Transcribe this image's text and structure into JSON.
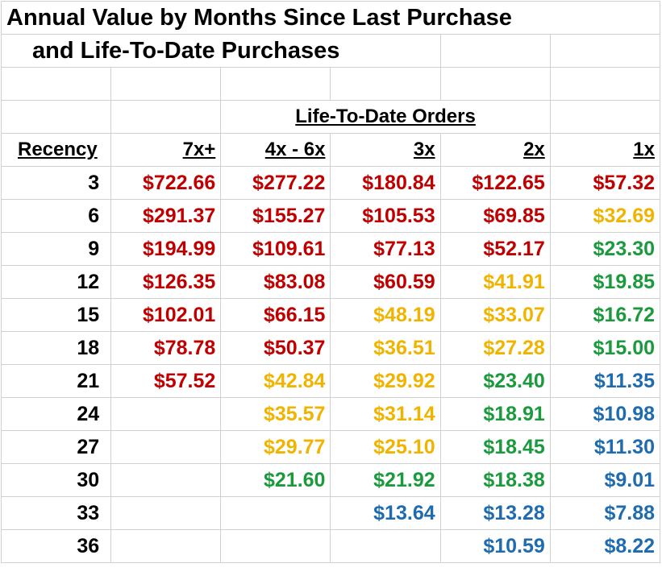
{
  "title_line1": "Annual Value by Months Since Last Purchase",
  "title_line2": "and Life-To-Date Purchases",
  "group_header": "Life-To-Date Orders",
  "column_headers": [
    "Recency",
    "7x+",
    "4x - 6x",
    "3x",
    "2x",
    "1x"
  ],
  "colors": {
    "red": "#c00000",
    "orange": "#f0b400",
    "green": "#1a9a3c",
    "blue": "#1e6bb0"
  },
  "rows": [
    {
      "recency": "3",
      "cells": [
        {
          "v": "$722.66",
          "c": "red"
        },
        {
          "v": "$277.22",
          "c": "red"
        },
        {
          "v": "$180.84",
          "c": "red"
        },
        {
          "v": "$122.65",
          "c": "red"
        },
        {
          "v": "$57.32",
          "c": "red"
        }
      ]
    },
    {
      "recency": "6",
      "cells": [
        {
          "v": "$291.37",
          "c": "red"
        },
        {
          "v": "$155.27",
          "c": "red"
        },
        {
          "v": "$105.53",
          "c": "red"
        },
        {
          "v": "$69.85",
          "c": "red"
        },
        {
          "v": "$32.69",
          "c": "orange"
        }
      ]
    },
    {
      "recency": "9",
      "cells": [
        {
          "v": "$194.99",
          "c": "red"
        },
        {
          "v": "$109.61",
          "c": "red"
        },
        {
          "v": "$77.13",
          "c": "red"
        },
        {
          "v": "$52.17",
          "c": "red"
        },
        {
          "v": "$23.30",
          "c": "green"
        }
      ]
    },
    {
      "recency": "12",
      "cells": [
        {
          "v": "$126.35",
          "c": "red"
        },
        {
          "v": "$83.08",
          "c": "red"
        },
        {
          "v": "$60.59",
          "c": "red"
        },
        {
          "v": "$41.91",
          "c": "orange"
        },
        {
          "v": "$19.85",
          "c": "green"
        }
      ]
    },
    {
      "recency": "15",
      "cells": [
        {
          "v": "$102.01",
          "c": "red"
        },
        {
          "v": "$66.15",
          "c": "red"
        },
        {
          "v": "$48.19",
          "c": "orange"
        },
        {
          "v": "$33.07",
          "c": "orange"
        },
        {
          "v": "$16.72",
          "c": "green"
        }
      ]
    },
    {
      "recency": "18",
      "cells": [
        {
          "v": "$78.78",
          "c": "red"
        },
        {
          "v": "$50.37",
          "c": "red"
        },
        {
          "v": "$36.51",
          "c": "orange"
        },
        {
          "v": "$27.28",
          "c": "orange"
        },
        {
          "v": "$15.00",
          "c": "green"
        }
      ]
    },
    {
      "recency": "21",
      "cells": [
        {
          "v": "$57.52",
          "c": "red"
        },
        {
          "v": "$42.84",
          "c": "orange"
        },
        {
          "v": "$29.92",
          "c": "orange"
        },
        {
          "v": "$23.40",
          "c": "green"
        },
        {
          "v": "$11.35",
          "c": "blue"
        }
      ]
    },
    {
      "recency": "24",
      "cells": [
        {
          "v": "",
          "c": ""
        },
        {
          "v": "$35.57",
          "c": "orange"
        },
        {
          "v": "$31.14",
          "c": "orange"
        },
        {
          "v": "$18.91",
          "c": "green"
        },
        {
          "v": "$10.98",
          "c": "blue"
        }
      ]
    },
    {
      "recency": "27",
      "cells": [
        {
          "v": "",
          "c": ""
        },
        {
          "v": "$29.77",
          "c": "orange"
        },
        {
          "v": "$25.10",
          "c": "orange"
        },
        {
          "v": "$18.45",
          "c": "green"
        },
        {
          "v": "$11.30",
          "c": "blue"
        }
      ]
    },
    {
      "recency": "30",
      "cells": [
        {
          "v": "",
          "c": ""
        },
        {
          "v": "$21.60",
          "c": "green"
        },
        {
          "v": "$21.92",
          "c": "green"
        },
        {
          "v": "$18.38",
          "c": "green"
        },
        {
          "v": "$9.01",
          "c": "blue"
        }
      ]
    },
    {
      "recency": "33",
      "cells": [
        {
          "v": "",
          "c": ""
        },
        {
          "v": "",
          "c": ""
        },
        {
          "v": "$13.64",
          "c": "blue"
        },
        {
          "v": "$13.28",
          "c": "blue"
        },
        {
          "v": "$7.88",
          "c": "blue"
        }
      ]
    },
    {
      "recency": "36",
      "cells": [
        {
          "v": "",
          "c": ""
        },
        {
          "v": "",
          "c": ""
        },
        {
          "v": "",
          "c": ""
        },
        {
          "v": "$10.59",
          "c": "blue"
        },
        {
          "v": "$8.22",
          "c": "blue"
        }
      ]
    }
  ]
}
